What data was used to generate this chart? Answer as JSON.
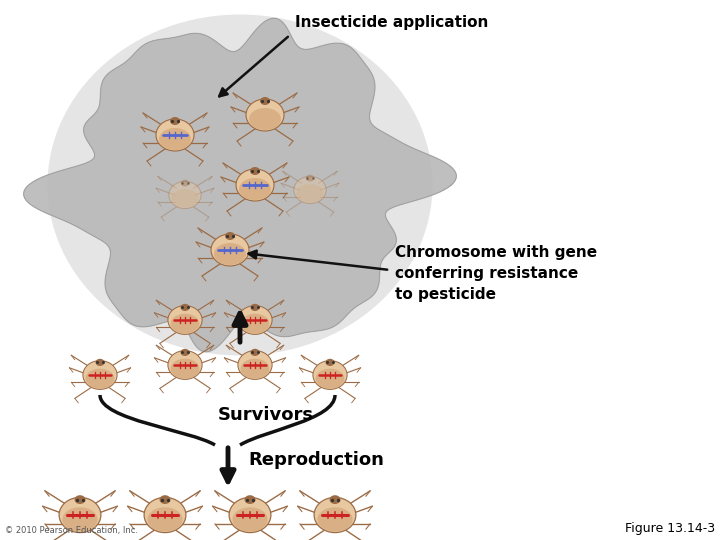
{
  "background_color": "#ffffff",
  "label_insecticide": "Insecticide application",
  "label_chromosome": "Chromosome with gene\nconferring resistance\nto pesticide",
  "label_survivors": "Survivors",
  "label_reproduction": "Reproduction",
  "label_figure": "Figure 13.14-3",
  "label_copyright": "© 2010 Pearson Education, Inc.",
  "cloud_color": "#b8b8b8",
  "cloud_edge": "#999999",
  "arrow_color": "#111111",
  "text_color": "#000000",
  "bug_body": "#d4a57a",
  "bug_dark": "#9b6b45",
  "bug_light": "#e8c8a0",
  "chr_blue": "#5566cc",
  "chr_red": "#cc2222",
  "font_size_label": 11,
  "font_size_figure": 9,
  "font_size_copy": 6
}
